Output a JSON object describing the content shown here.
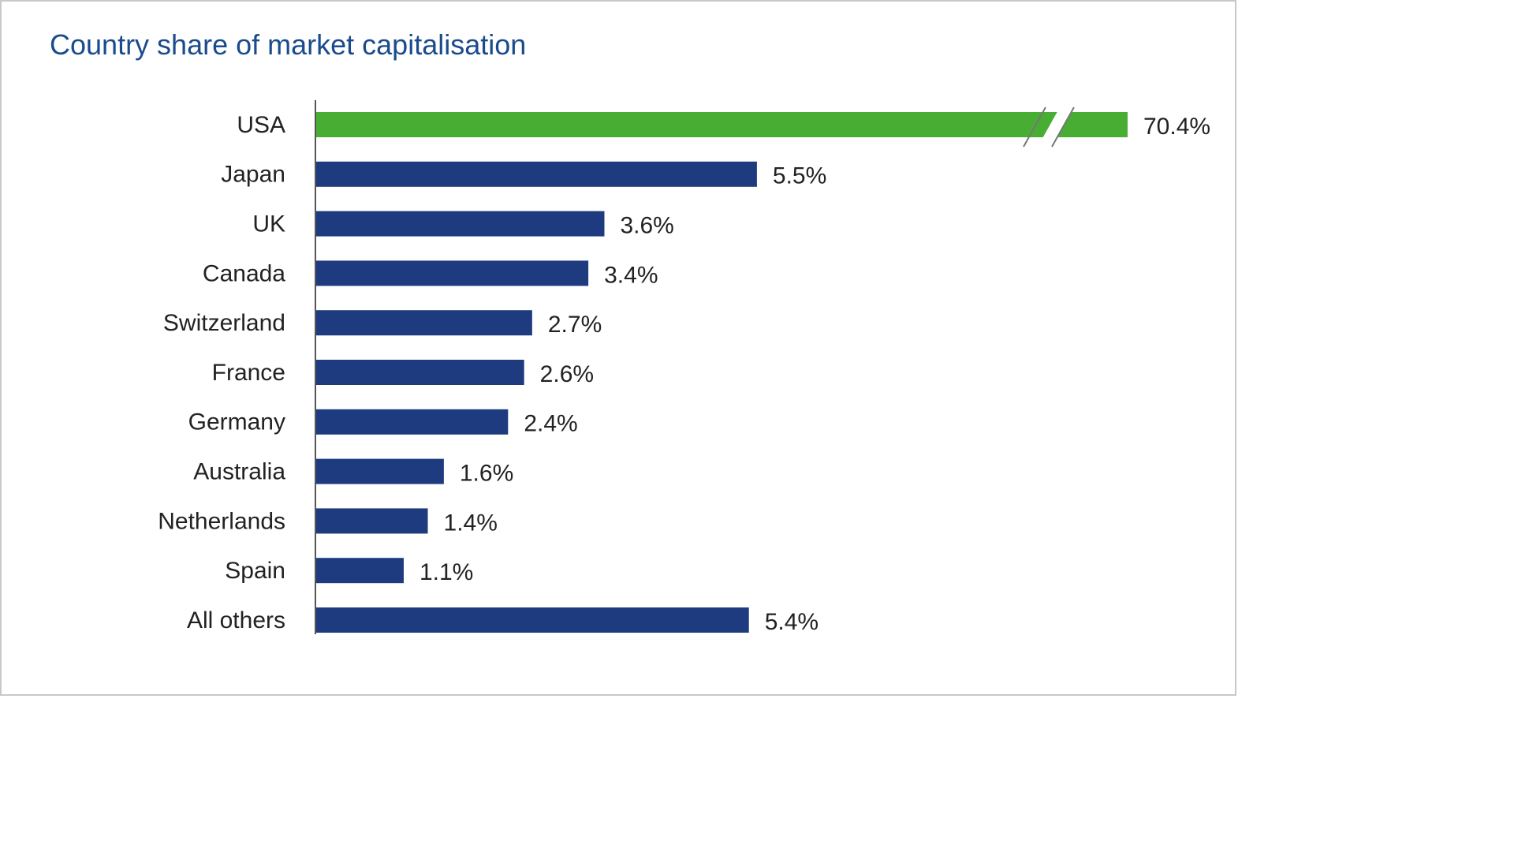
{
  "chart_data": {
    "type": "bar",
    "orientation": "horizontal",
    "title": "Country share of market capitalisation",
    "categories": [
      "USA",
      "Japan",
      "UK",
      "Canada",
      "Switzerland",
      "France",
      "Germany",
      "Australia",
      "Netherlands",
      "Spain",
      "All others"
    ],
    "values": [
      70.4,
      5.5,
      3.6,
      3.4,
      2.7,
      2.6,
      2.4,
      1.6,
      1.4,
      1.1,
      5.4
    ],
    "value_labels": [
      "70.4%",
      "5.5%",
      "3.6%",
      "3.4%",
      "2.7%",
      "2.6%",
      "2.4%",
      "1.6%",
      "1.4%",
      "1.1%",
      "5.4%"
    ],
    "unit": "%",
    "axis_break": true,
    "highlight_category": "USA",
    "colors": {
      "bar": "#1f3b80",
      "highlight": "#48ad33",
      "title": "#1a4b8c",
      "axis": "#555555"
    },
    "grid": false,
    "legend": "none"
  }
}
